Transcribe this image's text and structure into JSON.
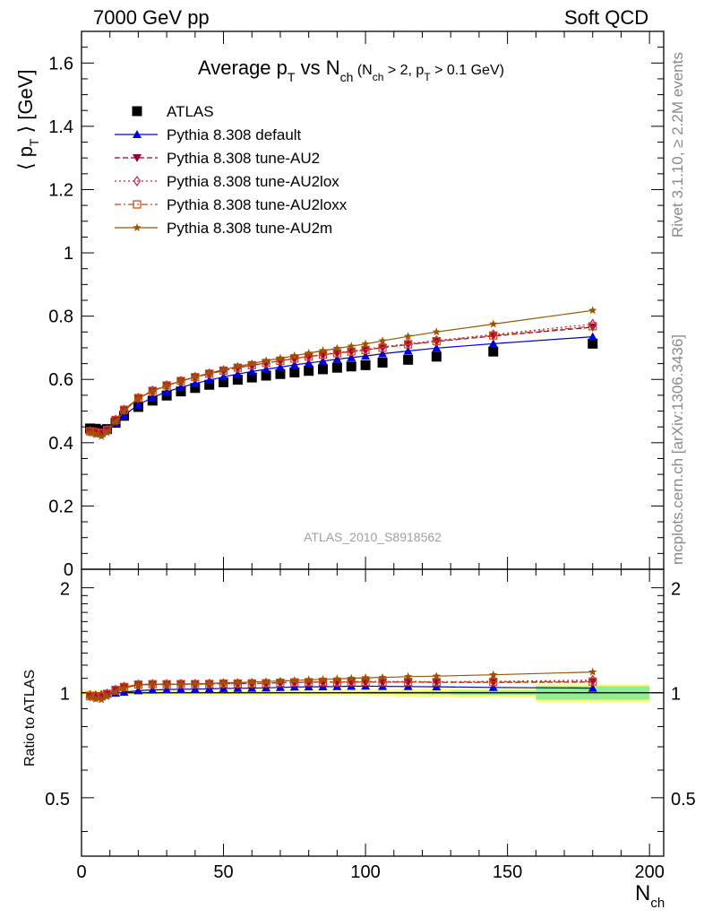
{
  "header": {
    "left": "7000 GeV pp",
    "right": "Soft QCD"
  },
  "side_labels": {
    "rivet": "Rivet 3.1.10, ≥ 2.2M events",
    "mcplots": "mcplots.cern.ch [arXiv:1306.3436]"
  },
  "chart_data": [
    {
      "type": "scatter",
      "panel": "main",
      "title": {
        "main": "Average p",
        "sub1": "T",
        "mid": " vs N",
        "sub2": "ch",
        "cond": " (N",
        "sub3": "ch",
        "cond2": " > 2, p",
        "sub4": "T",
        "cond3": " > 0.1 GeV)"
      },
      "ylabel": {
        "open": "⟨ p",
        "sub": "T",
        "close": " ⟩  [GeV]"
      },
      "watermark": "ATLAS_2010_S8918562",
      "xlim": [
        0,
        205
      ],
      "ylim": [
        0,
        1.7
      ],
      "yticks": [
        0,
        0.2,
        0.4,
        0.6,
        0.8,
        1,
        1.2,
        1.4,
        1.6
      ],
      "ytick_labels": [
        "0",
        "0.2",
        "0.4",
        "0.6",
        "0.8",
        "1",
        "1.2",
        "1.4",
        "1.6"
      ],
      "legend_position": "top-left",
      "series": [
        {
          "name": "ATLAS",
          "color": "#000000",
          "marker": "square-filled",
          "line": "none",
          "x": [
            3,
            5,
            7,
            9,
            12,
            15,
            20,
            25,
            30,
            35,
            40,
            45,
            50,
            55,
            60,
            65,
            70,
            75,
            80,
            85,
            90,
            95,
            100,
            106,
            115,
            125,
            145,
            180
          ],
          "y": [
            0.445,
            0.444,
            0.44,
            0.443,
            0.463,
            0.485,
            0.513,
            0.533,
            0.549,
            0.562,
            0.573,
            0.583,
            0.591,
            0.599,
            0.606,
            0.612,
            0.617,
            0.622,
            0.627,
            0.632,
            0.637,
            0.641,
            0.645,
            0.653,
            0.662,
            0.672,
            0.688,
            0.713
          ]
        },
        {
          "name": "Pythia 8.308 default",
          "color": "#0000dd",
          "marker": "triangle-up-filled",
          "line": "solid",
          "x": [
            3,
            5,
            7,
            9,
            12,
            15,
            20,
            25,
            30,
            35,
            40,
            45,
            50,
            55,
            60,
            65,
            70,
            75,
            80,
            85,
            90,
            95,
            100,
            106,
            115,
            125,
            145,
            180
          ],
          "y": [
            0.44,
            0.438,
            0.435,
            0.44,
            0.462,
            0.487,
            0.52,
            0.543,
            0.561,
            0.575,
            0.587,
            0.598,
            0.608,
            0.617,
            0.625,
            0.632,
            0.639,
            0.646,
            0.652,
            0.658,
            0.664,
            0.669,
            0.674,
            0.681,
            0.69,
            0.699,
            0.713,
            0.735
          ]
        },
        {
          "name": "Pythia 8.308 tune-AU2",
          "color": "#990033",
          "marker": "triangle-down-filled",
          "line": "dashed",
          "x": [
            3,
            5,
            7,
            9,
            12,
            15,
            20,
            25,
            30,
            35,
            40,
            45,
            50,
            55,
            60,
            65,
            70,
            75,
            80,
            85,
            90,
            95,
            100,
            106,
            115,
            125,
            145,
            180
          ],
          "y": [
            0.436,
            0.433,
            0.43,
            0.44,
            0.472,
            0.504,
            0.541,
            0.564,
            0.581,
            0.595,
            0.607,
            0.618,
            0.628,
            0.637,
            0.645,
            0.652,
            0.659,
            0.666,
            0.672,
            0.678,
            0.683,
            0.688,
            0.693,
            0.7,
            0.71,
            0.72,
            0.737,
            0.765
          ]
        },
        {
          "name": "Pythia 8.308 tune-AU2lox",
          "color": "#bb2255",
          "marker": "diamond-open",
          "line": "dotted",
          "x": [
            3,
            5,
            7,
            9,
            12,
            15,
            20,
            25,
            30,
            35,
            40,
            45,
            50,
            55,
            60,
            65,
            70,
            75,
            80,
            85,
            90,
            95,
            100,
            106,
            115,
            125,
            145,
            180
          ],
          "y": [
            0.436,
            0.433,
            0.43,
            0.44,
            0.472,
            0.504,
            0.541,
            0.564,
            0.581,
            0.595,
            0.607,
            0.618,
            0.628,
            0.637,
            0.645,
            0.652,
            0.66,
            0.667,
            0.673,
            0.679,
            0.685,
            0.69,
            0.695,
            0.703,
            0.713,
            0.723,
            0.742,
            0.775
          ]
        },
        {
          "name": "Pythia 8.308 tune-AU2loxx",
          "color": "#cc4411",
          "marker": "square-open",
          "line": "dashdot",
          "x": [
            3,
            5,
            7,
            9,
            12,
            15,
            20,
            25,
            30,
            35,
            40,
            45,
            50,
            55,
            60,
            65,
            70,
            75,
            80,
            85,
            90,
            95,
            100,
            106,
            115,
            125,
            145,
            180
          ],
          "y": [
            0.436,
            0.433,
            0.43,
            0.44,
            0.472,
            0.504,
            0.541,
            0.564,
            0.581,
            0.595,
            0.607,
            0.618,
            0.628,
            0.637,
            0.645,
            0.652,
            0.659,
            0.666,
            0.672,
            0.678,
            0.683,
            0.688,
            0.693,
            0.7,
            0.711,
            0.721,
            0.739,
            0.768
          ]
        },
        {
          "name": "Pythia 8.308 tune-AU2m",
          "color": "#995500",
          "marker": "star-filled",
          "line": "solid",
          "x": [
            3,
            5,
            7,
            9,
            12,
            15,
            20,
            25,
            30,
            35,
            40,
            45,
            50,
            55,
            60,
            65,
            70,
            75,
            80,
            85,
            90,
            95,
            100,
            106,
            115,
            125,
            145,
            180
          ],
          "y": [
            0.432,
            0.426,
            0.42,
            0.432,
            0.465,
            0.5,
            0.54,
            0.563,
            0.58,
            0.595,
            0.608,
            0.62,
            0.631,
            0.641,
            0.65,
            0.659,
            0.667,
            0.675,
            0.683,
            0.691,
            0.698,
            0.705,
            0.712,
            0.722,
            0.736,
            0.75,
            0.775,
            0.818
          ]
        }
      ]
    },
    {
      "type": "line",
      "panel": "ratio",
      "xlabel": {
        "main": "N",
        "sub": "ch"
      },
      "ylabel": "Ratio to ATLAS",
      "xlim": [
        0,
        205
      ],
      "ylim": [
        0.34,
        2.26
      ],
      "yticks": [
        0.5,
        1,
        2
      ],
      "ytick_labels": [
        "0.5",
        "1",
        "2"
      ],
      "xticks": [
        0,
        50,
        100,
        150,
        200
      ],
      "xtick_labels": [
        "0",
        "50",
        "100",
        "150",
        "200"
      ],
      "log_y": true,
      "uncertainty_bands": {
        "x_edges": [
          0,
          5,
          10,
          15,
          20,
          30,
          50,
          70,
          90,
          101,
          110,
          120,
          130,
          160,
          200
        ],
        "stat": [
          0.005,
          0.005,
          0.005,
          0.005,
          0.005,
          0.005,
          0.005,
          0.005,
          0.006,
          0.008,
          0.009,
          0.01,
          0.014,
          0.045
        ],
        "total": [
          0.018,
          0.017,
          0.016,
          0.016,
          0.016,
          0.016,
          0.017,
          0.018,
          0.02,
          0.022,
          0.025,
          0.028,
          0.032,
          0.06
        ],
        "stat_color": "#90ee90",
        "total_color": "#ffff80"
      },
      "series": [
        {
          "name": "Pythia 8.308 default",
          "color": "#0000dd",
          "marker": "triangle-up-filled",
          "line": "solid",
          "x": [
            3,
            5,
            7,
            9,
            12,
            15,
            20,
            25,
            30,
            35,
            40,
            45,
            50,
            55,
            60,
            65,
            70,
            75,
            80,
            85,
            90,
            95,
            100,
            106,
            115,
            125,
            145,
            180
          ],
          "y": [
            0.989,
            0.986,
            0.989,
            0.993,
            0.998,
            1.004,
            1.014,
            1.019,
            1.022,
            1.023,
            1.024,
            1.026,
            1.029,
            1.03,
            1.031,
            1.033,
            1.036,
            1.039,
            1.04,
            1.041,
            1.042,
            1.044,
            1.045,
            1.043,
            1.042,
            1.04,
            1.036,
            1.031
          ]
        },
        {
          "name": "Pythia 8.308 tune-AU2",
          "color": "#990033",
          "marker": "triangle-down-filled",
          "line": "dashed",
          "x": [
            3,
            5,
            7,
            9,
            12,
            15,
            20,
            25,
            30,
            35,
            40,
            45,
            50,
            55,
            60,
            65,
            70,
            75,
            80,
            85,
            90,
            95,
            100,
            106,
            115,
            125,
            145,
            180
          ],
          "y": [
            0.98,
            0.975,
            0.977,
            0.993,
            1.019,
            1.039,
            1.055,
            1.058,
            1.058,
            1.059,
            1.059,
            1.06,
            1.063,
            1.063,
            1.064,
            1.065,
            1.068,
            1.071,
            1.072,
            1.073,
            1.072,
            1.073,
            1.074,
            1.072,
            1.073,
            1.071,
            1.071,
            1.073
          ]
        },
        {
          "name": "Pythia 8.308 tune-AU2lox",
          "color": "#bb2255",
          "marker": "diamond-open",
          "line": "dotted",
          "x": [
            3,
            5,
            7,
            9,
            12,
            15,
            20,
            25,
            30,
            35,
            40,
            45,
            50,
            55,
            60,
            65,
            70,
            75,
            80,
            85,
            90,
            95,
            100,
            106,
            115,
            125,
            145,
            180
          ],
          "y": [
            0.98,
            0.975,
            0.977,
            0.993,
            1.019,
            1.039,
            1.055,
            1.058,
            1.058,
            1.059,
            1.059,
            1.06,
            1.063,
            1.063,
            1.064,
            1.065,
            1.07,
            1.072,
            1.073,
            1.074,
            1.075,
            1.076,
            1.078,
            1.077,
            1.077,
            1.076,
            1.078,
            1.087
          ]
        },
        {
          "name": "Pythia 8.308 tune-AU2loxx",
          "color": "#cc4411",
          "marker": "square-open",
          "line": "dashdot",
          "x": [
            3,
            5,
            7,
            9,
            12,
            15,
            20,
            25,
            30,
            35,
            40,
            45,
            50,
            55,
            60,
            65,
            70,
            75,
            80,
            85,
            90,
            95,
            100,
            106,
            115,
            125,
            145,
            180
          ],
          "y": [
            0.98,
            0.975,
            0.977,
            0.993,
            1.019,
            1.039,
            1.055,
            1.058,
            1.058,
            1.059,
            1.059,
            1.06,
            1.063,
            1.063,
            1.064,
            1.065,
            1.068,
            1.071,
            1.072,
            1.073,
            1.072,
            1.073,
            1.074,
            1.072,
            1.074,
            1.073,
            1.074,
            1.077
          ]
        },
        {
          "name": "Pythia 8.308 tune-AU2m",
          "color": "#995500",
          "marker": "star-filled",
          "line": "solid",
          "x": [
            3,
            5,
            7,
            9,
            12,
            15,
            20,
            25,
            30,
            35,
            40,
            45,
            50,
            55,
            60,
            65,
            70,
            75,
            80,
            85,
            90,
            95,
            100,
            106,
            115,
            125,
            145,
            180
          ],
          "y": [
            0.971,
            0.959,
            0.955,
            0.975,
            1.004,
            1.031,
            1.053,
            1.056,
            1.056,
            1.059,
            1.061,
            1.063,
            1.068,
            1.07,
            1.073,
            1.077,
            1.081,
            1.085,
            1.089,
            1.093,
            1.096,
            1.1,
            1.104,
            1.106,
            1.112,
            1.116,
            1.126,
            1.147
          ]
        }
      ]
    }
  ]
}
